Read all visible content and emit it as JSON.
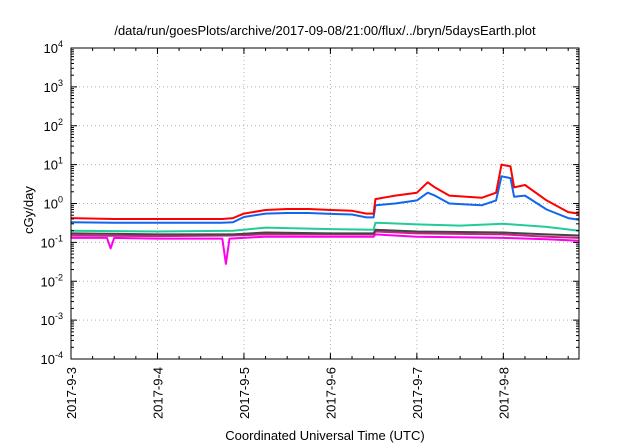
{
  "chart_data": {
    "type": "line",
    "title": "/data/run/goesPlots/archive/2017-09-08/21:00/flux/../bryn/5daysEarth.plot",
    "xlabel": "Coordinated Universal Time (UTC)",
    "ylabel": "cGy/day",
    "yscale": "log",
    "ylim": [
      0.0001,
      10000
    ],
    "yticks": [
      {
        "value": 0.0001,
        "base": "10",
        "exp": "-4"
      },
      {
        "value": 0.001,
        "base": "10",
        "exp": "-3"
      },
      {
        "value": 0.01,
        "base": "10",
        "exp": "-2"
      },
      {
        "value": 0.1,
        "base": "10",
        "exp": "-1"
      },
      {
        "value": 1,
        "base": "10",
        "exp": "0"
      },
      {
        "value": 10,
        "base": "10",
        "exp": "1"
      },
      {
        "value": 100,
        "base": "10",
        "exp": "2"
      },
      {
        "value": 1000,
        "base": "10",
        "exp": "3"
      },
      {
        "value": 10000,
        "base": "10",
        "exp": "4"
      }
    ],
    "xlim": [
      "2017-09-03 00:00",
      "2017-09-08 21:00"
    ],
    "xticks": [
      "2017-9-3",
      "2017-9-4",
      "2017-9-5",
      "2017-9-6",
      "2017-9-7",
      "2017-9-8"
    ],
    "grid": true,
    "series": [
      {
        "color": "#ff0000",
        "points": [
          [
            "2017-09-03 00:00",
            0.42
          ],
          [
            "2017-09-03 12:00",
            0.4
          ],
          [
            "2017-09-04 00:00",
            0.4
          ],
          [
            "2017-09-04 12:00",
            0.4
          ],
          [
            "2017-09-04 18:00",
            0.4
          ],
          [
            "2017-09-04 21:00",
            0.42
          ],
          [
            "2017-09-05 00:00",
            0.55
          ],
          [
            "2017-09-05 06:00",
            0.68
          ],
          [
            "2017-09-05 12:00",
            0.72
          ],
          [
            "2017-09-05 18:00",
            0.72
          ],
          [
            "2017-09-06 00:00",
            0.68
          ],
          [
            "2017-09-06 06:00",
            0.65
          ],
          [
            "2017-09-06 10:00",
            0.55
          ],
          [
            "2017-09-06 12:00",
            0.55
          ],
          [
            "2017-09-06 12:30",
            1.3
          ],
          [
            "2017-09-06 18:00",
            1.6
          ],
          [
            "2017-09-07 00:00",
            1.9
          ],
          [
            "2017-09-07 03:00",
            3.5
          ],
          [
            "2017-09-07 05:00",
            2.6
          ],
          [
            "2017-09-07 09:00",
            1.6
          ],
          [
            "2017-09-07 18:00",
            1.4
          ],
          [
            "2017-09-07 22:00",
            1.9
          ],
          [
            "2017-09-07 23:30",
            10
          ],
          [
            "2017-09-08 02:00",
            9
          ],
          [
            "2017-09-08 03:00",
            2.6
          ],
          [
            "2017-09-08 06:00",
            3.0
          ],
          [
            "2017-09-08 12:00",
            1.2
          ],
          [
            "2017-09-08 18:00",
            0.6
          ],
          [
            "2017-09-08 21:00",
            0.55
          ]
        ]
      },
      {
        "color": "#1166ee",
        "points": [
          [
            "2017-09-03 00:00",
            0.33
          ],
          [
            "2017-09-03 12:00",
            0.32
          ],
          [
            "2017-09-04 00:00",
            0.32
          ],
          [
            "2017-09-04 12:00",
            0.32
          ],
          [
            "2017-09-04 18:00",
            0.32
          ],
          [
            "2017-09-04 21:00",
            0.33
          ],
          [
            "2017-09-05 00:00",
            0.45
          ],
          [
            "2017-09-05 06:00",
            0.55
          ],
          [
            "2017-09-05 12:00",
            0.57
          ],
          [
            "2017-09-05 18:00",
            0.57
          ],
          [
            "2017-09-06 00:00",
            0.54
          ],
          [
            "2017-09-06 06:00",
            0.52
          ],
          [
            "2017-09-06 10:00",
            0.44
          ],
          [
            "2017-09-06 12:00",
            0.44
          ],
          [
            "2017-09-06 12:30",
            0.9
          ],
          [
            "2017-09-06 18:00",
            1.0
          ],
          [
            "2017-09-07 00:00",
            1.2
          ],
          [
            "2017-09-07 03:00",
            1.9
          ],
          [
            "2017-09-07 05:00",
            1.6
          ],
          [
            "2017-09-07 09:00",
            1.0
          ],
          [
            "2017-09-07 18:00",
            0.9
          ],
          [
            "2017-09-07 22:00",
            1.2
          ],
          [
            "2017-09-07 23:30",
            5.0
          ],
          [
            "2017-09-08 02:00",
            4.5
          ],
          [
            "2017-09-08 03:00",
            1.5
          ],
          [
            "2017-09-08 06:00",
            1.6
          ],
          [
            "2017-09-08 12:00",
            0.7
          ],
          [
            "2017-09-08 18:00",
            0.42
          ],
          [
            "2017-09-08 21:00",
            0.38
          ]
        ]
      },
      {
        "color": "#22cc99",
        "points": [
          [
            "2017-09-03 00:00",
            0.2
          ],
          [
            "2017-09-04 00:00",
            0.19
          ],
          [
            "2017-09-04 21:00",
            0.2
          ],
          [
            "2017-09-05 06:00",
            0.24
          ],
          [
            "2017-09-06 00:00",
            0.22
          ],
          [
            "2017-09-06 12:00",
            0.21
          ],
          [
            "2017-09-06 12:30",
            0.32
          ],
          [
            "2017-09-07 00:00",
            0.29
          ],
          [
            "2017-09-07 12:00",
            0.27
          ],
          [
            "2017-09-08 00:00",
            0.3
          ],
          [
            "2017-09-08 12:00",
            0.25
          ],
          [
            "2017-09-08 21:00",
            0.2
          ]
        ]
      },
      {
        "color": "#444444",
        "points": [
          [
            "2017-09-03 00:00",
            0.17
          ],
          [
            "2017-09-04 00:00",
            0.16
          ],
          [
            "2017-09-04 21:00",
            0.16
          ],
          [
            "2017-09-05 06:00",
            0.18
          ],
          [
            "2017-09-06 00:00",
            0.17
          ],
          [
            "2017-09-06 12:00",
            0.17
          ],
          [
            "2017-09-06 12:30",
            0.21
          ],
          [
            "2017-09-07 00:00",
            0.19
          ],
          [
            "2017-09-08 00:00",
            0.18
          ],
          [
            "2017-09-08 12:00",
            0.16
          ],
          [
            "2017-09-08 21:00",
            0.15
          ]
        ]
      },
      {
        "color": "#cc2288",
        "points": [
          [
            "2017-09-03 00:00",
            0.15
          ],
          [
            "2017-09-04 00:00",
            0.145
          ],
          [
            "2017-09-04 21:00",
            0.15
          ],
          [
            "2017-09-05 06:00",
            0.16
          ],
          [
            "2017-09-06 00:00",
            0.16
          ],
          [
            "2017-09-06 12:00",
            0.16
          ],
          [
            "2017-09-06 12:30",
            0.19
          ],
          [
            "2017-09-07 00:00",
            0.17
          ],
          [
            "2017-09-08 00:00",
            0.16
          ],
          [
            "2017-09-08 12:00",
            0.14
          ],
          [
            "2017-09-08 21:00",
            0.13
          ]
        ]
      },
      {
        "color": "#ff00ee",
        "points": [
          [
            "2017-09-03 00:00",
            0.13
          ],
          [
            "2017-09-03 10:00",
            0.13
          ],
          [
            "2017-09-03 11:00",
            0.07
          ],
          [
            "2017-09-03 12:00",
            0.13
          ],
          [
            "2017-09-04 00:00",
            0.125
          ],
          [
            "2017-09-04 18:00",
            0.125
          ],
          [
            "2017-09-04 19:00",
            0.028
          ],
          [
            "2017-09-04 20:00",
            0.125
          ],
          [
            "2017-09-05 06:00",
            0.14
          ],
          [
            "2017-09-06 00:00",
            0.14
          ],
          [
            "2017-09-06 12:00",
            0.14
          ],
          [
            "2017-09-06 12:30",
            0.16
          ],
          [
            "2017-09-07 00:00",
            0.14
          ],
          [
            "2017-09-08 00:00",
            0.13
          ],
          [
            "2017-09-08 12:00",
            0.12
          ],
          [
            "2017-09-08 21:00",
            0.11
          ]
        ]
      }
    ]
  }
}
